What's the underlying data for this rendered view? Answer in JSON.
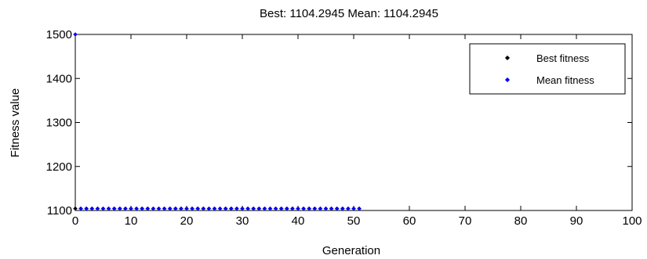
{
  "chart_data": {
    "type": "scatter",
    "title": "Best: 1104.2945 Mean: 1104.2945",
    "xlabel": "Generation",
    "ylabel": "Fitness value",
    "xlim": [
      0,
      100
    ],
    "ylim": [
      1100,
      1500
    ],
    "xticks": [
      "0",
      "10",
      "20",
      "30",
      "40",
      "50",
      "60",
      "70",
      "80",
      "90",
      "100"
    ],
    "yticks": [
      "1100",
      "1200",
      "1300",
      "1400",
      "1500"
    ],
    "grid": false,
    "legend_position": "top-right",
    "series": [
      {
        "name": "Best fitness",
        "color": "#000000",
        "marker": "point",
        "x": [
          0,
          1,
          2,
          3,
          4,
          5,
          6,
          7,
          8,
          9,
          10,
          11,
          12,
          13,
          14,
          15,
          16,
          17,
          18,
          19,
          20,
          21,
          22,
          23,
          24,
          25,
          26,
          27,
          28,
          29,
          30,
          31,
          32,
          33,
          34,
          35,
          36,
          37,
          38,
          39,
          40,
          41,
          42,
          43,
          44,
          45,
          46,
          47,
          48,
          49,
          50,
          51
        ],
        "y": [
          1104.2945,
          1104.2945,
          1104.2945,
          1104.2945,
          1104.2945,
          1104.2945,
          1104.2945,
          1104.2945,
          1104.2945,
          1104.2945,
          1104.2945,
          1104.2945,
          1104.2945,
          1104.2945,
          1104.2945,
          1104.2945,
          1104.2945,
          1104.2945,
          1104.2945,
          1104.2945,
          1104.2945,
          1104.2945,
          1104.2945,
          1104.2945,
          1104.2945,
          1104.2945,
          1104.2945,
          1104.2945,
          1104.2945,
          1104.2945,
          1104.2945,
          1104.2945,
          1104.2945,
          1104.2945,
          1104.2945,
          1104.2945,
          1104.2945,
          1104.2945,
          1104.2945,
          1104.2945,
          1104.2945,
          1104.2945,
          1104.2945,
          1104.2945,
          1104.2945,
          1104.2945,
          1104.2945,
          1104.2945,
          1104.2945,
          1104.2945,
          1104.2945,
          1104.2945
        ]
      },
      {
        "name": "Mean fitness",
        "color": "#0000ff",
        "marker": "point",
        "x": [
          0,
          1,
          2,
          3,
          4,
          5,
          6,
          7,
          8,
          9,
          10,
          11,
          12,
          13,
          14,
          15,
          16,
          17,
          18,
          19,
          20,
          21,
          22,
          23,
          24,
          25,
          26,
          27,
          28,
          29,
          30,
          31,
          32,
          33,
          34,
          35,
          36,
          37,
          38,
          39,
          40,
          41,
          42,
          43,
          44,
          45,
          46,
          47,
          48,
          49,
          50,
          51
        ],
        "y": [
          1500,
          1104.2945,
          1104.2945,
          1104.2945,
          1104.2945,
          1104.2945,
          1104.2945,
          1104.2945,
          1104.2945,
          1104.2945,
          1104.2945,
          1104.2945,
          1104.2945,
          1104.2945,
          1104.2945,
          1104.2945,
          1104.2945,
          1104.2945,
          1104.2945,
          1104.2945,
          1104.2945,
          1104.2945,
          1104.2945,
          1104.2945,
          1104.2945,
          1104.2945,
          1104.2945,
          1104.2945,
          1104.2945,
          1104.2945,
          1104.2945,
          1104.2945,
          1104.2945,
          1104.2945,
          1104.2945,
          1104.2945,
          1104.2945,
          1104.2945,
          1104.2945,
          1104.2945,
          1104.2945,
          1104.2945,
          1104.2945,
          1104.2945,
          1104.2945,
          1104.2945,
          1104.2945,
          1104.2945,
          1104.2945,
          1104.2945,
          1104.2945,
          1104.2945
        ]
      }
    ]
  }
}
